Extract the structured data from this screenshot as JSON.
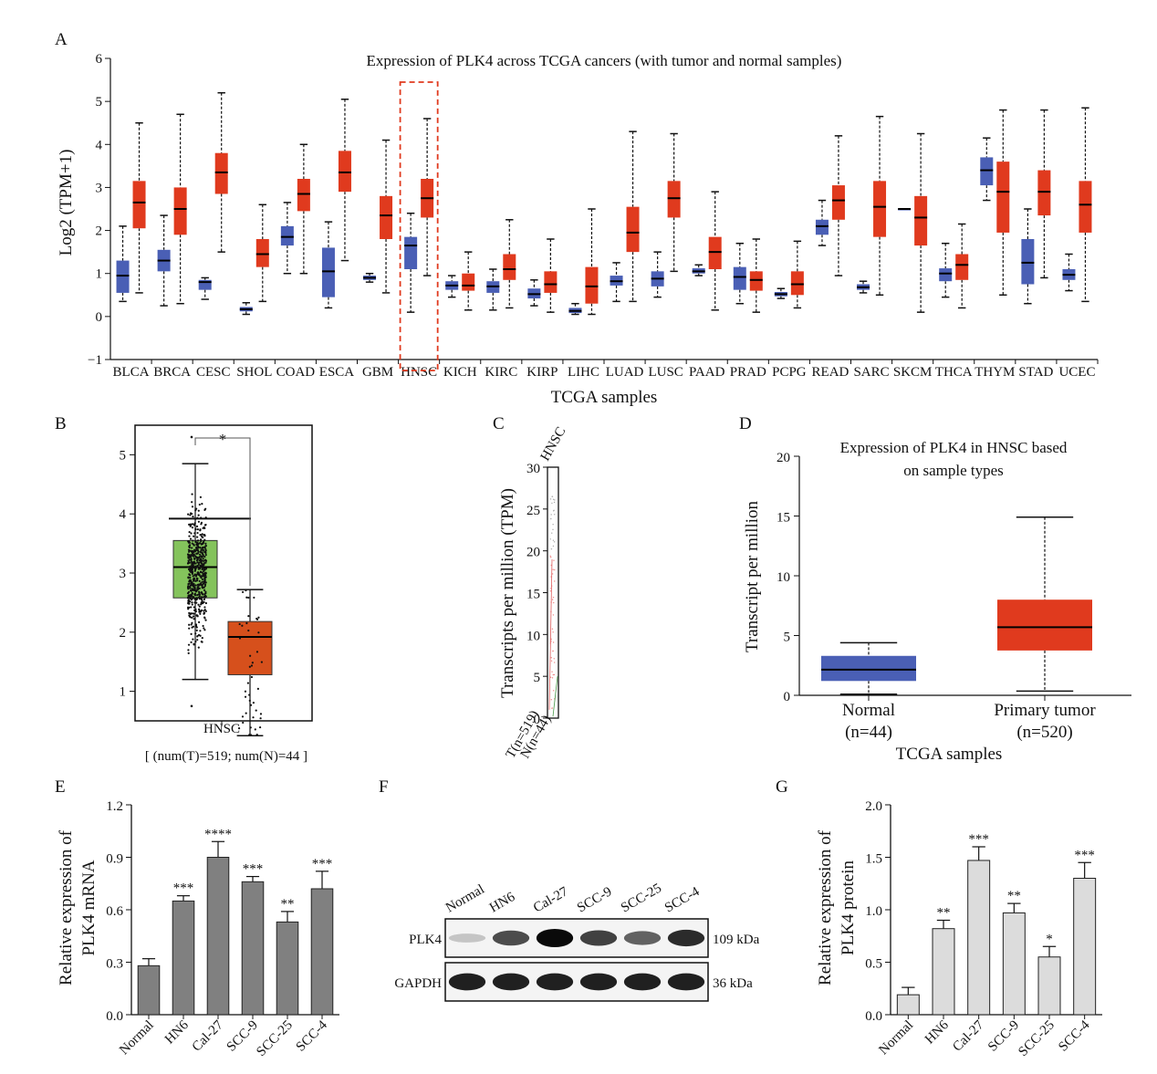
{
  "panels": {
    "A": "A",
    "B": "B",
    "C": "C",
    "D": "D",
    "E": "E",
    "F": "F",
    "G": "G"
  },
  "colors": {
    "normal": "#4a5fb5",
    "tumor": "#e03a1e",
    "green": "#84c35c",
    "orange": "#d6501c",
    "bar_dark": "#808080",
    "bar_light": "#dcdcdc",
    "highlight": "#e03a1e",
    "star_b": "#e03a1e"
  },
  "chart_data": [
    {
      "panel": "A",
      "type": "boxplot",
      "title": "Expression of PLK4 across TCGA cancers (with tumor and normal samples)",
      "xlabel": "TCGA samples",
      "ylabel": "Log2 (TPM+1)",
      "ylim": [
        -1,
        6
      ],
      "yticks": [
        "−1",
        "0",
        "1",
        "2",
        "3",
        "4",
        "5",
        "6"
      ],
      "highlight": "HNSC",
      "categories": [
        "BLCA",
        "BRCA",
        "CESC",
        "SHOL",
        "COAD",
        "ESCA",
        "GBM",
        "HNSC",
        "KICH",
        "KIRC",
        "KIRP",
        "LIHC",
        "LUAD",
        "LUSC",
        "PAAD",
        "PRAD",
        "PCPG",
        "READ",
        "SARC",
        "SKCM",
        "THCA",
        "THYM",
        "STAD",
        "UCEC"
      ],
      "series": [
        {
          "group": "normal",
          "boxes": [
            [
              0.35,
              0.55,
              0.95,
              1.3,
              2.1
            ],
            [
              0.25,
              1.05,
              1.3,
              1.55,
              2.35
            ],
            [
              0.4,
              0.62,
              0.8,
              0.85,
              0.9
            ],
            [
              0.05,
              0.12,
              0.17,
              0.22,
              0.32
            ],
            [
              1.0,
              1.65,
              1.85,
              2.1,
              2.65
            ],
            [
              0.2,
              0.45,
              1.05,
              1.6,
              2.2
            ],
            [
              0.8,
              0.85,
              0.9,
              0.95,
              1.0
            ],
            [
              0.1,
              1.1,
              1.65,
              1.85,
              2.4
            ],
            [
              0.45,
              0.62,
              0.72,
              0.82,
              0.95
            ],
            [
              0.15,
              0.55,
              0.7,
              0.82,
              1.1
            ],
            [
              0.25,
              0.42,
              0.52,
              0.65,
              0.85
            ],
            [
              0.05,
              0.08,
              0.13,
              0.2,
              0.3
            ],
            [
              0.35,
              0.72,
              0.82,
              0.95,
              1.25
            ],
            [
              0.45,
              0.7,
              0.88,
              1.05,
              1.5
            ],
            [
              0.95,
              1.0,
              1.05,
              1.12,
              1.2
            ],
            [
              0.3,
              0.62,
              0.92,
              1.15,
              1.7
            ],
            [
              0.42,
              0.47,
              0.52,
              0.57,
              0.65
            ],
            [
              1.65,
              1.9,
              2.1,
              2.25,
              2.7
            ],
            [
              0.55,
              0.62,
              0.68,
              0.75,
              0.82
            ],
            [
              2.5,
              2.5,
              2.5,
              2.5,
              2.5
            ],
            [
              0.45,
              0.82,
              1.0,
              1.12,
              1.7
            ],
            [
              2.7,
              3.05,
              3.4,
              3.7,
              4.15
            ],
            [
              0.3,
              0.75,
              1.25,
              1.8,
              2.5
            ],
            [
              0.6,
              0.85,
              0.97,
              1.1,
              1.45
            ]
          ]
        },
        {
          "group": "tumor",
          "boxes": [
            [
              0.55,
              2.05,
              2.65,
              3.15,
              4.5
            ],
            [
              0.3,
              1.9,
              2.5,
              3.0,
              4.7
            ],
            [
              1.5,
              2.85,
              3.35,
              3.8,
              5.2
            ],
            [
              0.35,
              1.15,
              1.45,
              1.8,
              2.6
            ],
            [
              1.0,
              2.45,
              2.85,
              3.2,
              4.0
            ],
            [
              1.3,
              2.9,
              3.35,
              3.85,
              5.05
            ],
            [
              0.55,
              1.8,
              2.35,
              2.8,
              4.1
            ],
            [
              0.95,
              2.3,
              2.75,
              3.2,
              4.6
            ],
            [
              0.15,
              0.6,
              0.72,
              1.0,
              1.5
            ],
            [
              0.2,
              0.85,
              1.1,
              1.45,
              2.25
            ],
            [
              0.1,
              0.55,
              0.75,
              1.05,
              1.8
            ],
            [
              0.05,
              0.3,
              0.7,
              1.15,
              2.5
            ],
            [
              0.35,
              1.5,
              1.95,
              2.55,
              4.3
            ],
            [
              1.05,
              2.3,
              2.75,
              3.15,
              4.25
            ],
            [
              0.15,
              1.1,
              1.5,
              1.85,
              2.9
            ],
            [
              0.1,
              0.6,
              0.85,
              1.05,
              1.8
            ],
            [
              0.2,
              0.5,
              0.75,
              1.05,
              1.75
            ],
            [
              0.95,
              2.25,
              2.7,
              3.05,
              4.2
            ],
            [
              0.5,
              1.85,
              2.55,
              3.15,
              4.65
            ],
            [
              0.1,
              1.65,
              2.3,
              2.8,
              4.25
            ],
            [
              0.2,
              0.85,
              1.2,
              1.45,
              2.15
            ],
            [
              0.5,
              1.95,
              2.9,
              3.6,
              4.8
            ],
            [
              0.9,
              2.35,
              2.9,
              3.4,
              4.8
            ],
            [
              0.35,
              1.95,
              2.6,
              3.15,
              4.85
            ]
          ]
        }
      ]
    },
    {
      "panel": "B",
      "type": "boxplot",
      "categories": [
        "HNSC"
      ],
      "sample_note": "[ (num(T)=519; num(N)=44 ]",
      "ylim": [
        0.5,
        5.5
      ],
      "yticks": [
        "1",
        "2",
        "3",
        "4",
        "5"
      ],
      "significance": "*",
      "series": [
        {
          "name": "T",
          "box": [
            1.2,
            2.58,
            3.1,
            3.55,
            4.85
          ],
          "max_point": 5.3,
          "min_point": 0.75
        },
        {
          "name": "N",
          "box": [
            0.25,
            1.28,
            1.92,
            2.18,
            2.72
          ]
        }
      ],
      "cutoff_line": 3.92
    },
    {
      "panel": "C",
      "type": "dotplot",
      "ylabel": "Transcripts per million (TPM)",
      "category": "HNSC",
      "ylim": [
        0,
        30
      ],
      "yticks": [
        "0",
        "5",
        "10",
        "15",
        "20",
        "25",
        "30"
      ],
      "xticklabels": [
        "T(n=519)",
        "N(n=44)"
      ]
    },
    {
      "panel": "D",
      "type": "boxplot",
      "title": "Expression of PLK4 in HNSC based on sample types",
      "title_lines": [
        "Expression of PLK4 in HNSC based",
        "on sample types"
      ],
      "xlabel": "TCGA samples",
      "ylabel": "Transcript per million",
      "ylim": [
        0,
        20
      ],
      "yticks": [
        "0",
        "5",
        "10",
        "15",
        "20"
      ],
      "categories": [
        "Normal",
        "Primary tumor"
      ],
      "category_n": [
        "(n=44)",
        "(n=520)"
      ],
      "series": [
        {
          "name": "Normal",
          "box": [
            0.1,
            1.2,
            2.15,
            3.3,
            4.4
          ]
        },
        {
          "name": "Primary tumor",
          "box": [
            0.35,
            3.75,
            5.7,
            8.0,
            14.9
          ]
        }
      ]
    },
    {
      "panel": "E",
      "type": "bar",
      "ylabel": "Relative expression of PLK4 mRNA",
      "ylabel_lines": [
        "Relative expression of",
        "PLK4 mRNA"
      ],
      "ylim": [
        0,
        1.2
      ],
      "yticks": [
        "0.0",
        "0.3",
        "0.6",
        "0.9",
        "1.2"
      ],
      "categories": [
        "Normal",
        "HN6",
        "Cal-27",
        "SCC-9",
        "SCC-25",
        "SCC-4"
      ],
      "values": [
        0.28,
        0.65,
        0.9,
        0.76,
        0.53,
        0.72
      ],
      "errors": [
        0.04,
        0.03,
        0.09,
        0.03,
        0.06,
        0.1
      ],
      "significance": [
        "",
        "***",
        "****",
        "***",
        "**",
        "***"
      ]
    },
    {
      "panel": "F",
      "type": "western_blot",
      "lanes": [
        "Normal",
        "HN6",
        "Cal-27",
        "SCC-9",
        "SCC-25",
        "SCC-4"
      ],
      "rows": [
        {
          "label": "PLK4",
          "size": "109 kDa",
          "intensity": [
            0.15,
            0.7,
            1.0,
            0.75,
            0.6,
            0.85
          ]
        },
        {
          "label": "GAPDH",
          "size": "36 kDa",
          "intensity": [
            0.9,
            0.9,
            0.9,
            0.9,
            0.9,
            0.9
          ]
        }
      ]
    },
    {
      "panel": "G",
      "type": "bar",
      "ylabel": "Relative expression of PLK4 protein",
      "ylabel_lines": [
        "Relative expression of",
        "PLK4 protein"
      ],
      "ylim": [
        0,
        2.0
      ],
      "yticks": [
        "0.0",
        "0.5",
        "1.0",
        "1.5",
        "2.0"
      ],
      "categories": [
        "Normal",
        "HN6",
        "Cal-27",
        "SCC-9",
        "SCC-25",
        "SCC-4"
      ],
      "values": [
        0.19,
        0.82,
        1.47,
        0.97,
        0.55,
        1.3
      ],
      "errors": [
        0.07,
        0.08,
        0.13,
        0.09,
        0.1,
        0.15
      ],
      "significance": [
        "",
        "**",
        "***",
        "**",
        "*",
        "***"
      ]
    }
  ]
}
